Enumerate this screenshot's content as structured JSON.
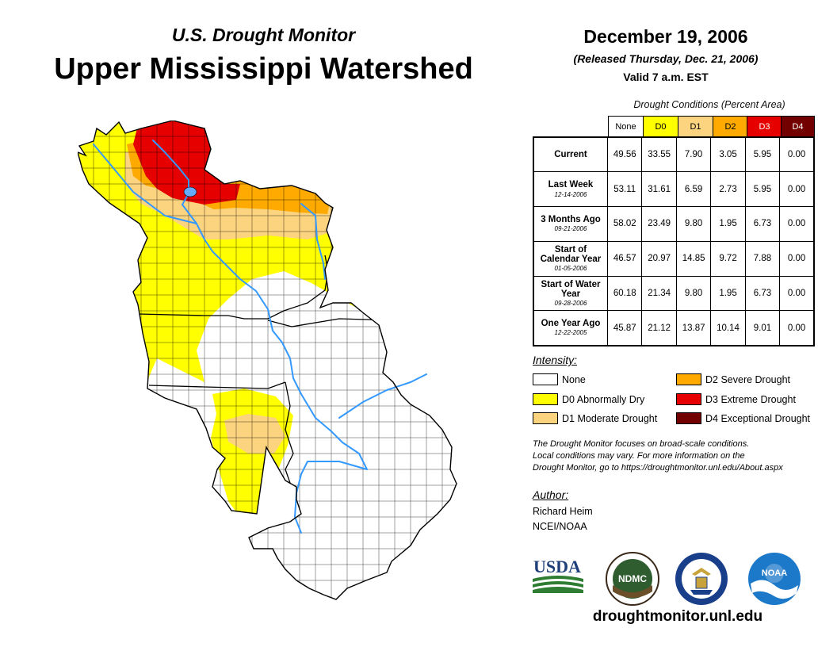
{
  "header": {
    "subtitle": "U.S. Drought Monitor",
    "title": "Upper Mississippi Watershed"
  },
  "date_block": {
    "date": "December 19, 2006",
    "released": "(Released Thursday, Dec. 21, 2006)",
    "valid": "Valid 7 a.m. EST"
  },
  "conditions_table": {
    "caption": "Drought Conditions (Percent Area)",
    "columns": [
      {
        "label": "None",
        "color": "#ffffff",
        "text_color": "#000000"
      },
      {
        "label": "D0",
        "color": "#ffff00",
        "text_color": "#000000"
      },
      {
        "label": "D1",
        "color": "#fcd37f",
        "text_color": "#000000"
      },
      {
        "label": "D2",
        "color": "#ffaa00",
        "text_color": "#000000"
      },
      {
        "label": "D3",
        "color": "#e60000",
        "text_color": "#ffffff"
      },
      {
        "label": "D4",
        "color": "#730000",
        "text_color": "#ffffff"
      }
    ],
    "rows": [
      {
        "label": "Current",
        "date": "",
        "values": [
          "49.56",
          "33.55",
          "7.90",
          "3.05",
          "5.95",
          "0.00"
        ]
      },
      {
        "label": "Last Week",
        "date": "12-14-2006",
        "values": [
          "53.11",
          "31.61",
          "6.59",
          "2.73",
          "5.95",
          "0.00"
        ]
      },
      {
        "label": "3 Months Ago",
        "date": "09-21-2006",
        "values": [
          "58.02",
          "23.49",
          "9.80",
          "1.95",
          "6.73",
          "0.00"
        ]
      },
      {
        "label": "Start of Calendar Year",
        "date": "01-05-2006",
        "values": [
          "46.57",
          "20.97",
          "14.85",
          "9.72",
          "7.88",
          "0.00"
        ]
      },
      {
        "label": "Start of Water Year",
        "date": "09-28-2006",
        "values": [
          "60.18",
          "21.34",
          "9.80",
          "1.95",
          "6.73",
          "0.00"
        ]
      },
      {
        "label": "One Year Ago",
        "date": "12-22-2005",
        "values": [
          "45.87",
          "21.12",
          "13.87",
          "10.14",
          "9.01",
          "0.00"
        ]
      }
    ]
  },
  "legend": {
    "title": "Intensity:",
    "items": [
      {
        "label": "None",
        "color": "#ffffff"
      },
      {
        "label": "D0 Abnormally Dry",
        "color": "#ffff00"
      },
      {
        "label": "D1 Moderate Drought",
        "color": "#fcd37f"
      },
      {
        "label": "D2 Severe Drought",
        "color": "#ffaa00"
      },
      {
        "label": "D3 Extreme Drought",
        "color": "#e60000"
      },
      {
        "label": "D4 Exceptional Drought",
        "color": "#730000"
      }
    ]
  },
  "note": {
    "line1": "The Drought Monitor focuses on broad-scale conditions.",
    "line2": "Local conditions may vary. For more information on the",
    "line3": "Drought Monitor, go to https://droughtmonitor.unl.edu/About.aspx"
  },
  "author": {
    "title": "Author:",
    "name": "Richard Heim",
    "org": "NCEI/NOAA"
  },
  "logos": {
    "usda": "USDA",
    "ndmc": "NDMC",
    "noaa": "NOAA"
  },
  "footer": {
    "site": "droughtmonitor.unl.edu"
  },
  "map": {
    "region": "Upper Mississippi Watershed",
    "river_color": "#3399ff"
  }
}
